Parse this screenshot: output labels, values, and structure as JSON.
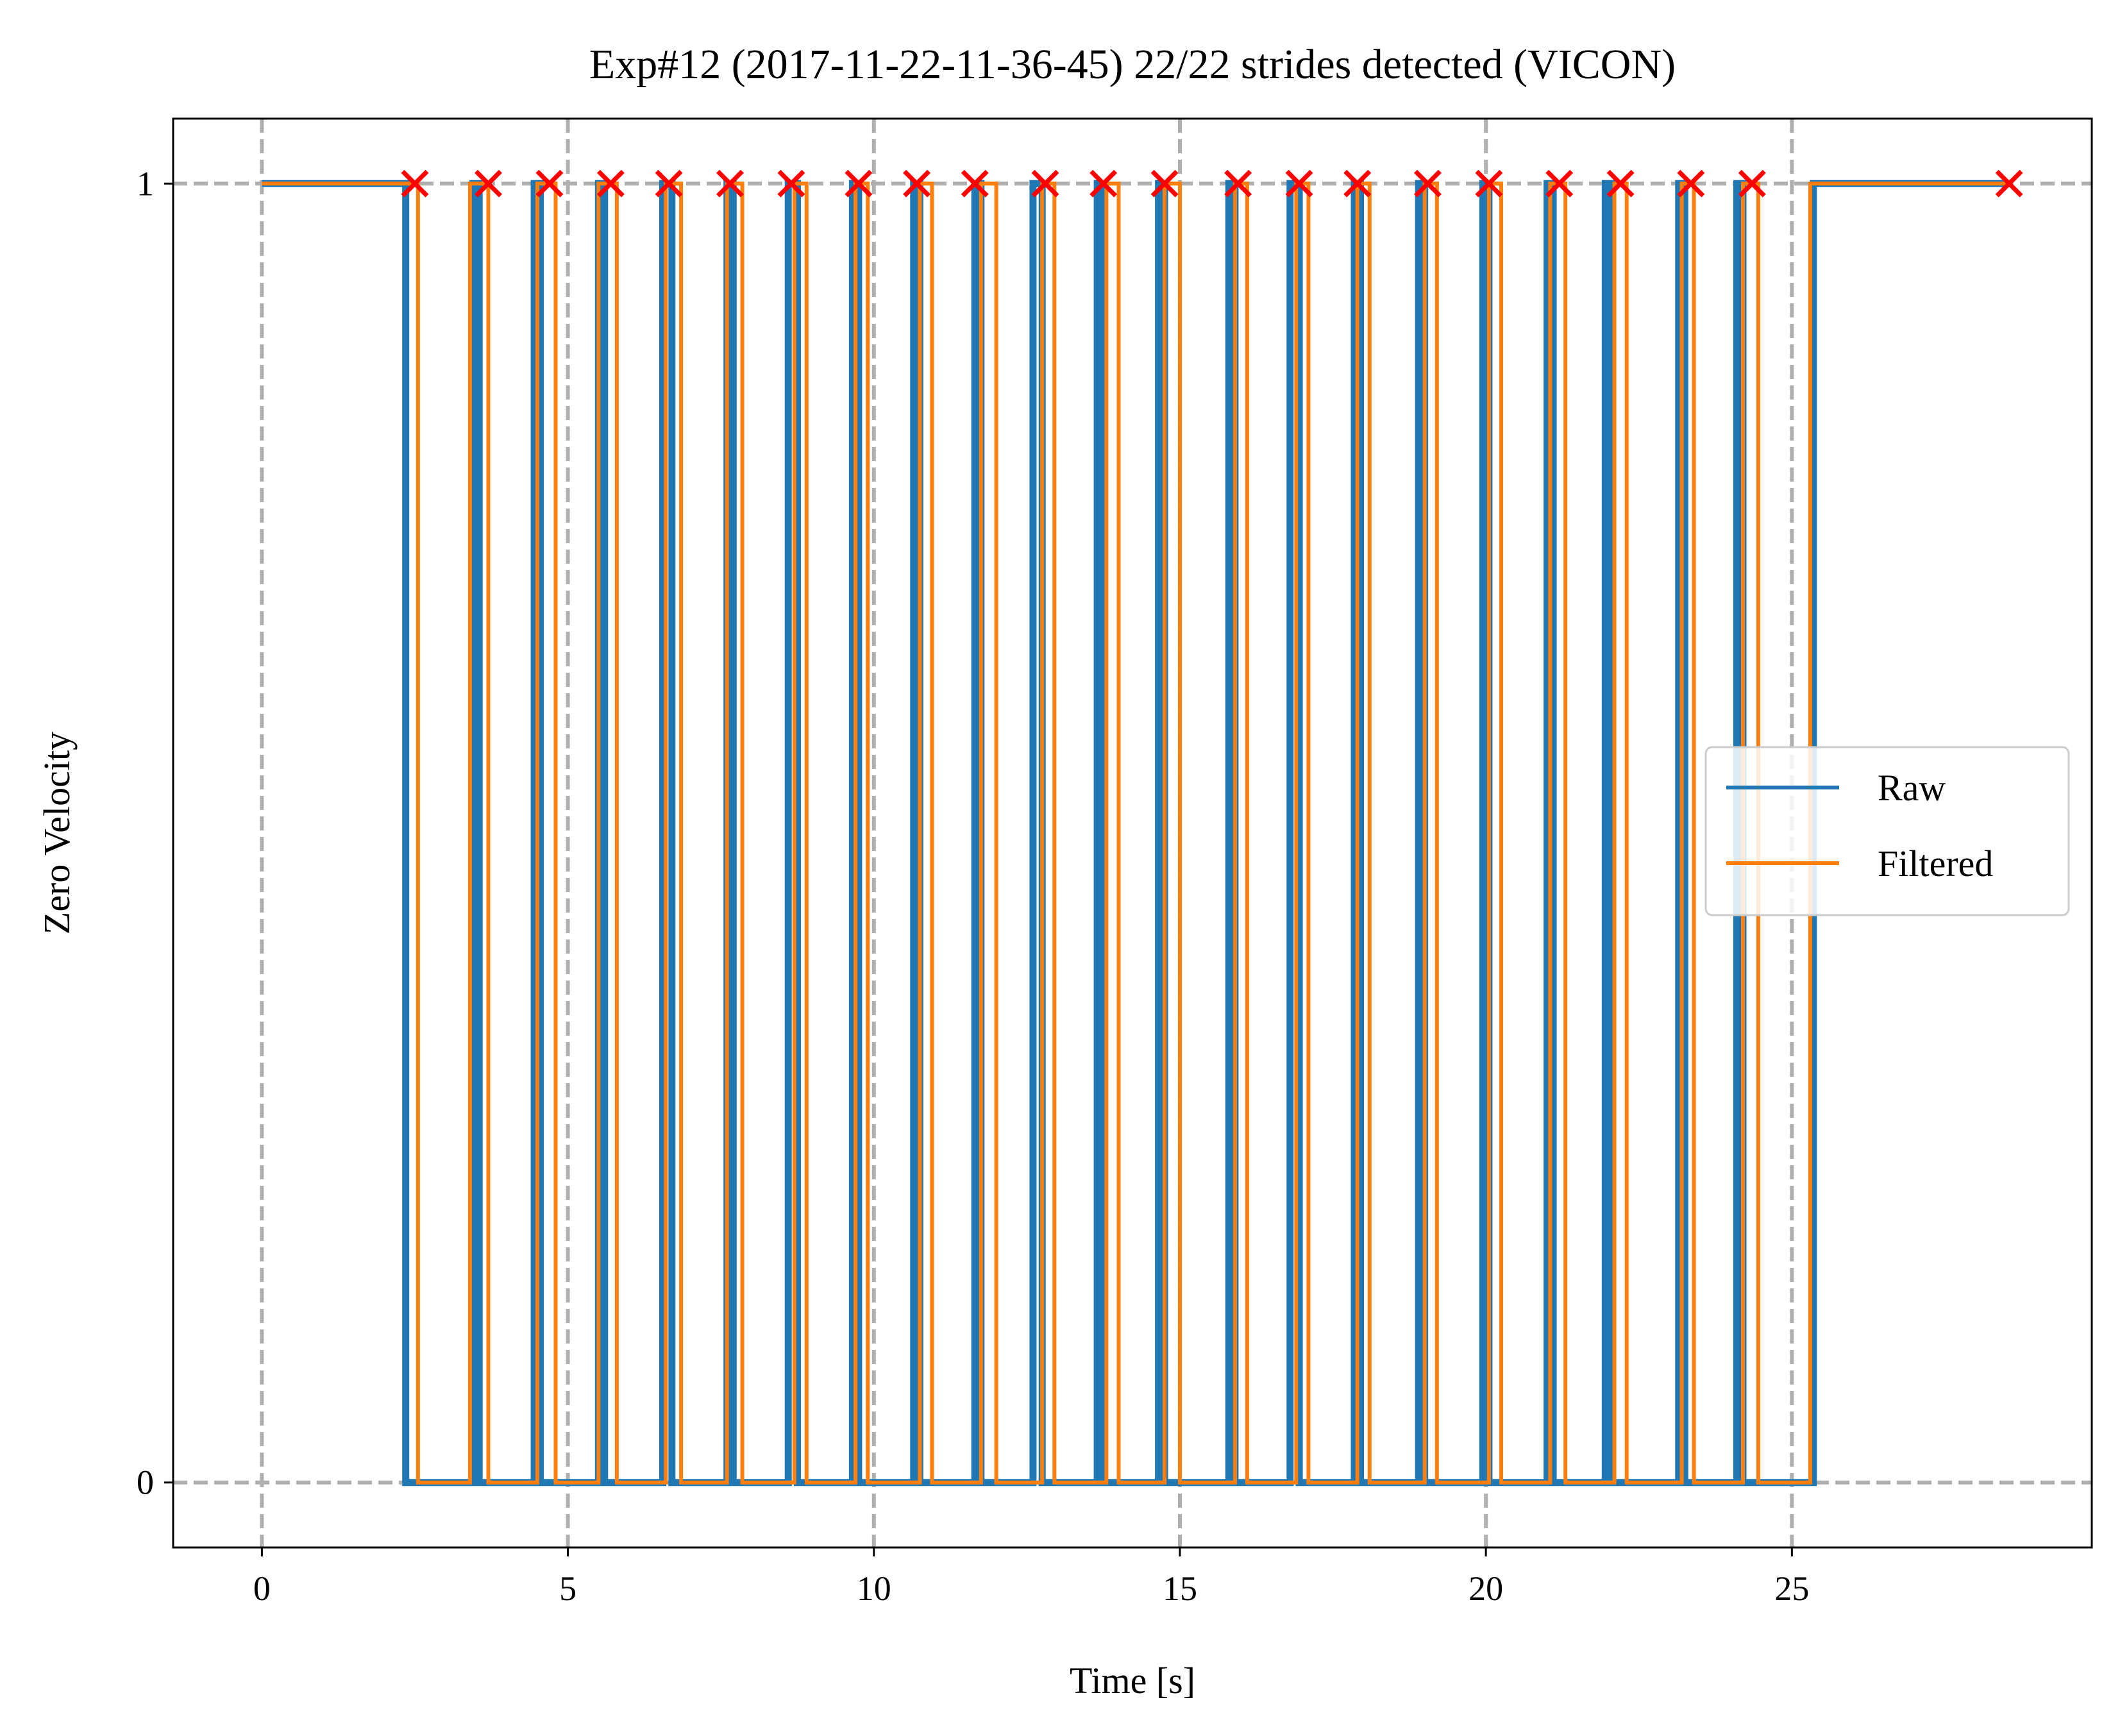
{
  "chart_data": {
    "type": "line",
    "title": "Exp#12 (2017-11-22-11-36-45) 22/22 strides detected (VICON)",
    "xlabel": "Time [s]",
    "ylabel": "Zero Velocity",
    "xlim": [
      -1.45,
      29.9
    ],
    "ylim": [
      -0.05,
      1.05
    ],
    "xticks": [
      0,
      5,
      10,
      15,
      20,
      25
    ],
    "yticks": [
      0,
      1
    ],
    "grid": true,
    "grid_style": "dashed",
    "legend_position": "center-right",
    "series": [
      {
        "name": "Raw",
        "color": "#1f77b4",
        "kind": "step",
        "initial": 1,
        "final": 1,
        "end": 28.6,
        "zero_intervals": [
          [
            2.35,
            3.45
          ],
          [
            3.55,
            4.45
          ],
          [
            4.55,
            5.5
          ],
          [
            5.6,
            6.55
          ],
          [
            6.7,
            7.6
          ],
          [
            7.7,
            8.6
          ],
          [
            8.75,
            9.65
          ],
          [
            9.75,
            10.65
          ],
          [
            10.75,
            11.65
          ],
          [
            11.75,
            12.6
          ],
          [
            12.75,
            13.65
          ],
          [
            13.75,
            14.65
          ],
          [
            14.75,
            15.8
          ],
          [
            15.9,
            16.8
          ],
          [
            16.95,
            17.85
          ],
          [
            17.95,
            18.9
          ],
          [
            19.0,
            19.95
          ],
          [
            20.05,
            21.0
          ],
          [
            21.1,
            21.95
          ],
          [
            22.05,
            23.15
          ],
          [
            23.25,
            24.1
          ],
          [
            24.2,
            25.35
          ]
        ]
      },
      {
        "name": "Filtered",
        "color": "#ff7f0e",
        "kind": "step",
        "initial": 1,
        "final": 1,
        "end": 28.6,
        "zero_intervals": [
          [
            2.55,
            3.4
          ],
          [
            3.7,
            4.5
          ],
          [
            4.8,
            5.5
          ],
          [
            5.8,
            6.6
          ],
          [
            6.85,
            7.6
          ],
          [
            7.85,
            8.7
          ],
          [
            8.9,
            9.7
          ],
          [
            9.9,
            10.75
          ],
          [
            10.95,
            11.75
          ],
          [
            12.0,
            12.75
          ],
          [
            12.95,
            13.8
          ],
          [
            14.0,
            14.75
          ],
          [
            15.0,
            15.9
          ],
          [
            16.1,
            16.9
          ],
          [
            17.1,
            17.9
          ],
          [
            18.1,
            19.0
          ],
          [
            19.2,
            20.05
          ],
          [
            20.25,
            21.05
          ],
          [
            21.3,
            22.1
          ],
          [
            22.3,
            23.2
          ],
          [
            23.4,
            24.2
          ],
          [
            24.45,
            25.3
          ]
        ]
      },
      {
        "name": "",
        "color": "#ff0000",
        "kind": "markers",
        "marker": "x",
        "x": [
          2.5,
          3.7,
          4.7,
          5.7,
          6.65,
          7.65,
          8.65,
          9.75,
          10.7,
          11.65,
          12.8,
          13.75,
          14.75,
          15.95,
          16.95,
          17.9,
          19.05,
          20.05,
          21.2,
          22.2,
          23.35,
          24.35,
          28.55
        ],
        "y": 1
      }
    ]
  },
  "legend": {
    "entries": [
      {
        "label": "Raw",
        "color": "#1f77b4"
      },
      {
        "label": "Filtered",
        "color": "#ff7f0e"
      }
    ]
  }
}
